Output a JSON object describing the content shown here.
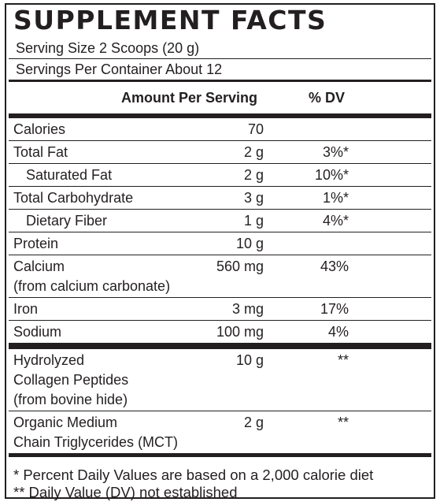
{
  "title": "SUPPLEMENT FACTS",
  "serving_size": "Serving Size 2 Scoops (20 g)",
  "servings_per_container": "Servings Per Container About 12",
  "header": {
    "amount": "Amount Per Serving",
    "dv": "% DV"
  },
  "sections": [
    [
      {
        "name": [
          "Calories"
        ],
        "amount": "70"
      },
      {
        "name": [
          "Total Fat"
        ],
        "amount": "2 g",
        "dv": "3%*",
        "sub": [
          {
            "name": [
              "Saturated Fat"
            ],
            "amount": "2 g",
            "dv": "10%*"
          }
        ]
      },
      {
        "name": [
          "Total Carbohydrate"
        ],
        "amount": "3 g",
        "dv": "1%*",
        "sub": [
          {
            "name": [
              "Dietary Fiber"
            ],
            "amount": "1 g",
            "dv": "4%*"
          }
        ]
      },
      {
        "name": [
          "Protein"
        ],
        "amount": "10 g"
      },
      {
        "name": [
          "Calcium",
          "(from calcium carbonate)"
        ],
        "amount": "560 mg",
        "dv": "43%"
      },
      {
        "name": [
          "Iron"
        ],
        "amount": "3 mg",
        "dv": "17%"
      },
      {
        "name": [
          "Sodium"
        ],
        "amount": "100 mg",
        "dv": "4%"
      }
    ],
    [
      {
        "name": [
          "Hydrolyzed",
          "Collagen Peptides",
          "(from bovine hide)"
        ],
        "amount": "10 g",
        "dv": "**"
      },
      {
        "name": [
          "Organic Medium",
          "Chain Triglycerides (MCT)"
        ],
        "amount": "2 g",
        "dv": "**"
      }
    ]
  ],
  "footnotes": [
    "* Percent Daily Values are based on a 2,000 calorie diet",
    "** Daily Value (DV) not established"
  ]
}
